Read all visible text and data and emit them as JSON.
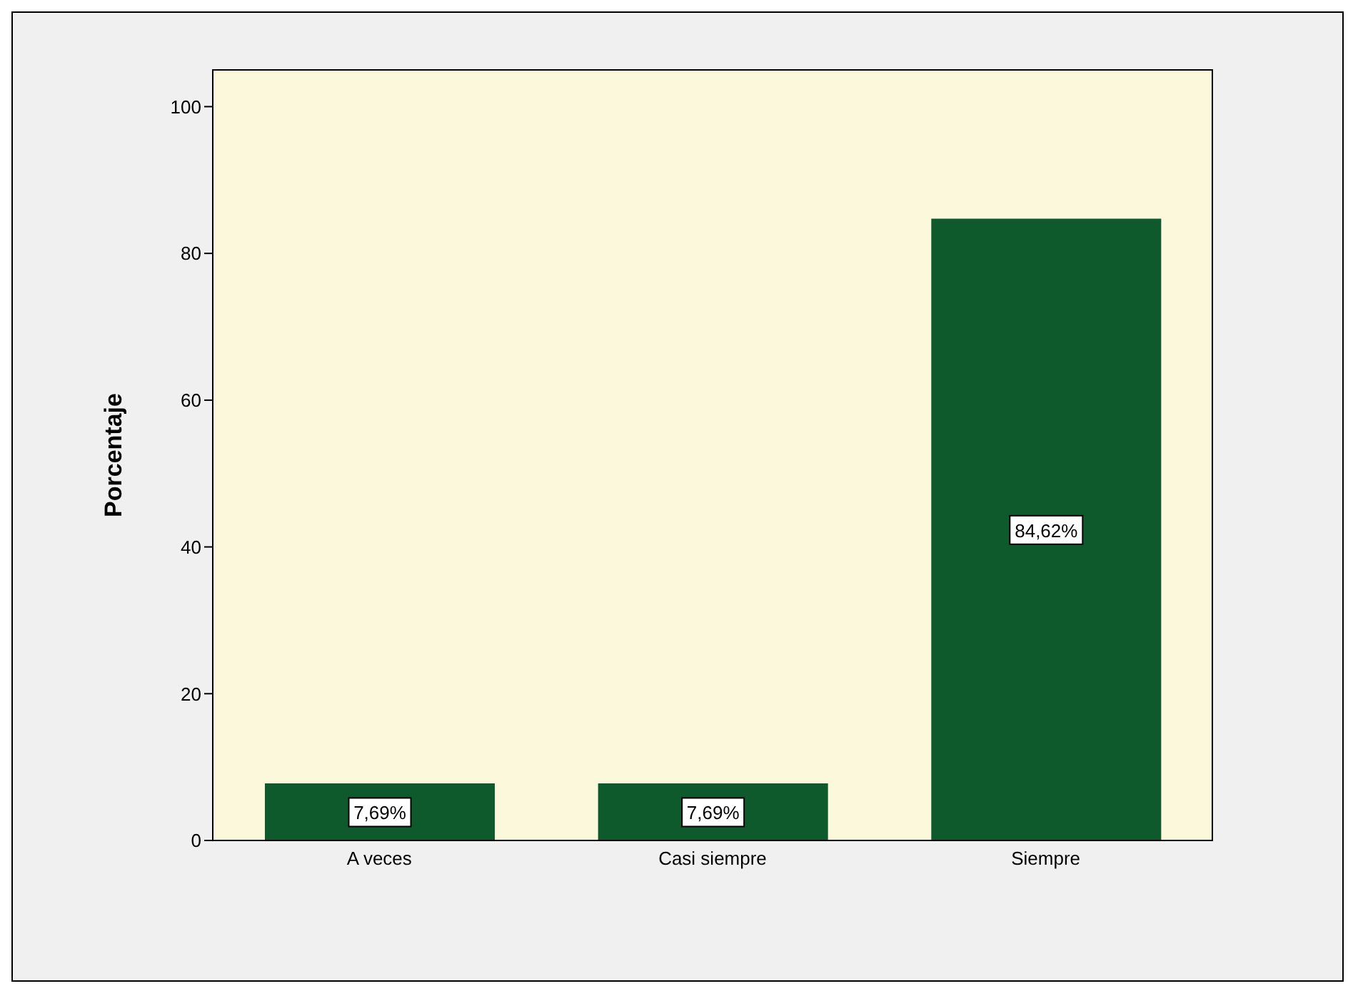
{
  "chart_data": {
    "type": "bar",
    "ylabel": "Porcentaje",
    "categories": [
      "A veces",
      "Casi siempre",
      "Siempre"
    ],
    "values": [
      7.69,
      7.69,
      84.62
    ],
    "value_labels": [
      "7,69%",
      "7,69%",
      "84,62%"
    ],
    "color": "#0f5a2c",
    "ylim": [
      0,
      105
    ],
    "yticks": [
      0,
      20,
      40,
      60,
      80,
      100
    ],
    "legend": false
  }
}
